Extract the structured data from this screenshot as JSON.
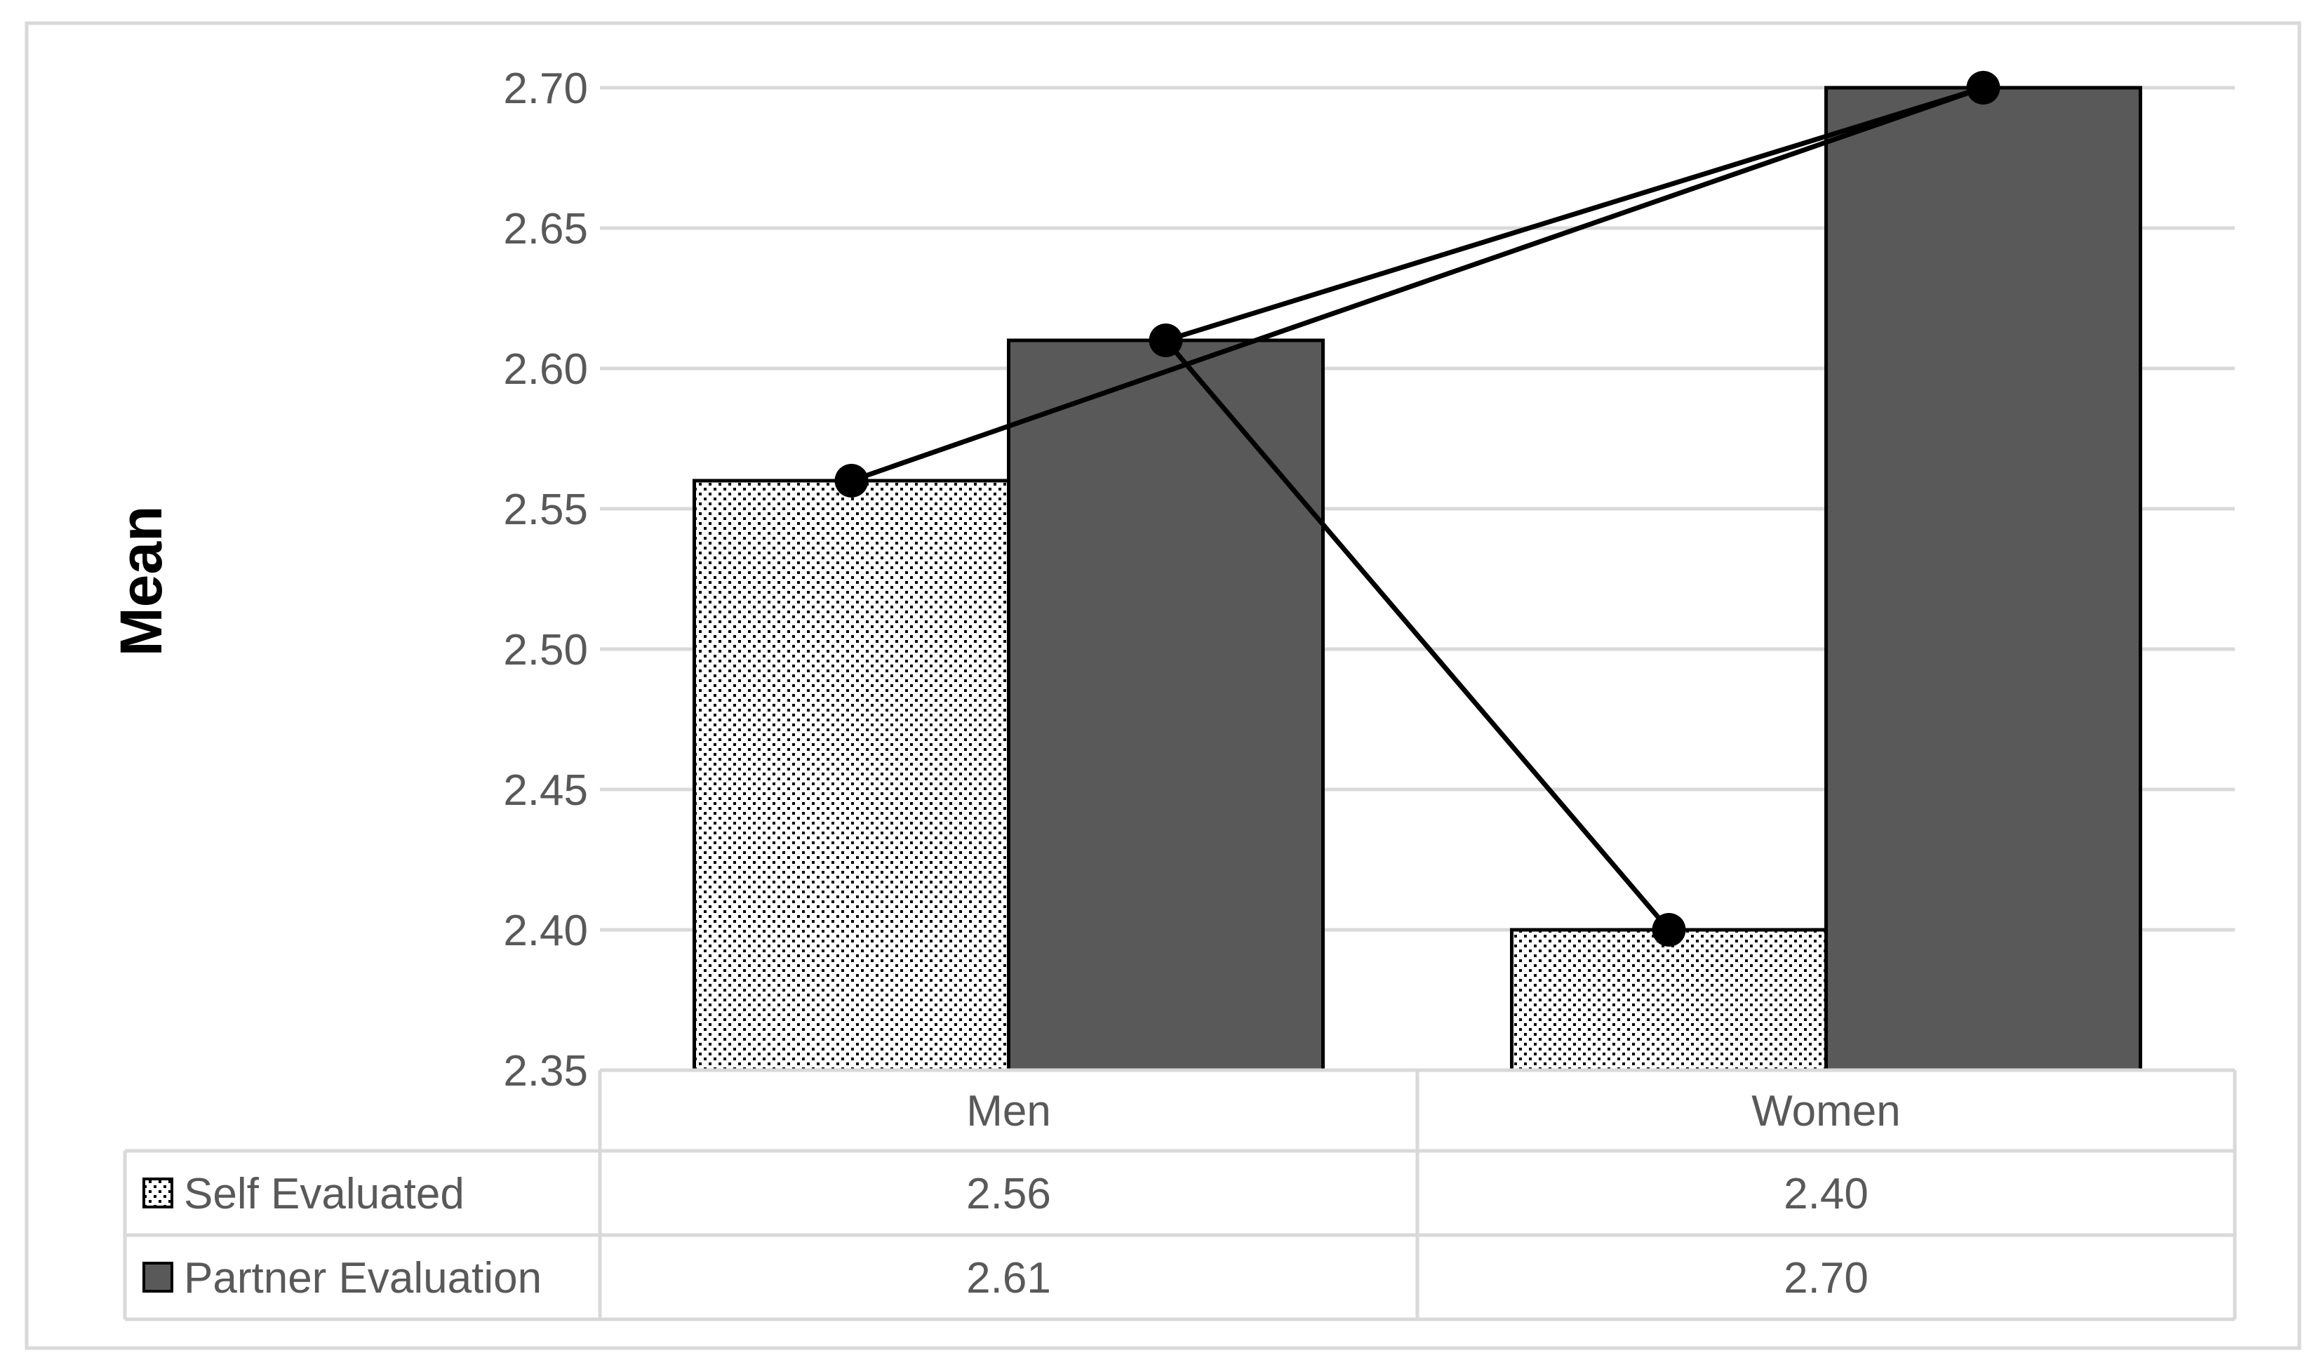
{
  "chart_data": {
    "type": "bar",
    "ylabel": "Mean",
    "ylim": [
      2.35,
      2.7
    ],
    "yticks": [
      "2.70",
      "2.65",
      "2.60",
      "2.55",
      "2.50",
      "2.45",
      "2.40",
      "2.35"
    ],
    "ytick_values": [
      2.7,
      2.65,
      2.6,
      2.55,
      2.5,
      2.45,
      2.4,
      2.35
    ],
    "categories": [
      "Men",
      "Women"
    ],
    "series": [
      {
        "name": "Self Evaluated",
        "values": [
          2.56,
          2.4
        ],
        "value_labels": [
          "2.56",
          "2.40"
        ],
        "pattern": "dotted"
      },
      {
        "name": "Partner Evaluation",
        "values": [
          2.61,
          2.7
        ],
        "value_labels": [
          "2.61",
          "2.70"
        ],
        "color": "#595959"
      }
    ],
    "connecting_line": {
      "points": [
        [
          "Men",
          "Self Evaluated"
        ],
        [
          "Women",
          "Partner Evaluation"
        ],
        [
          "Men",
          "Partner Evaluation"
        ],
        [
          "Women",
          "Self Evaluated"
        ]
      ],
      "color": "#000000"
    },
    "grid": true,
    "data_table": true
  }
}
